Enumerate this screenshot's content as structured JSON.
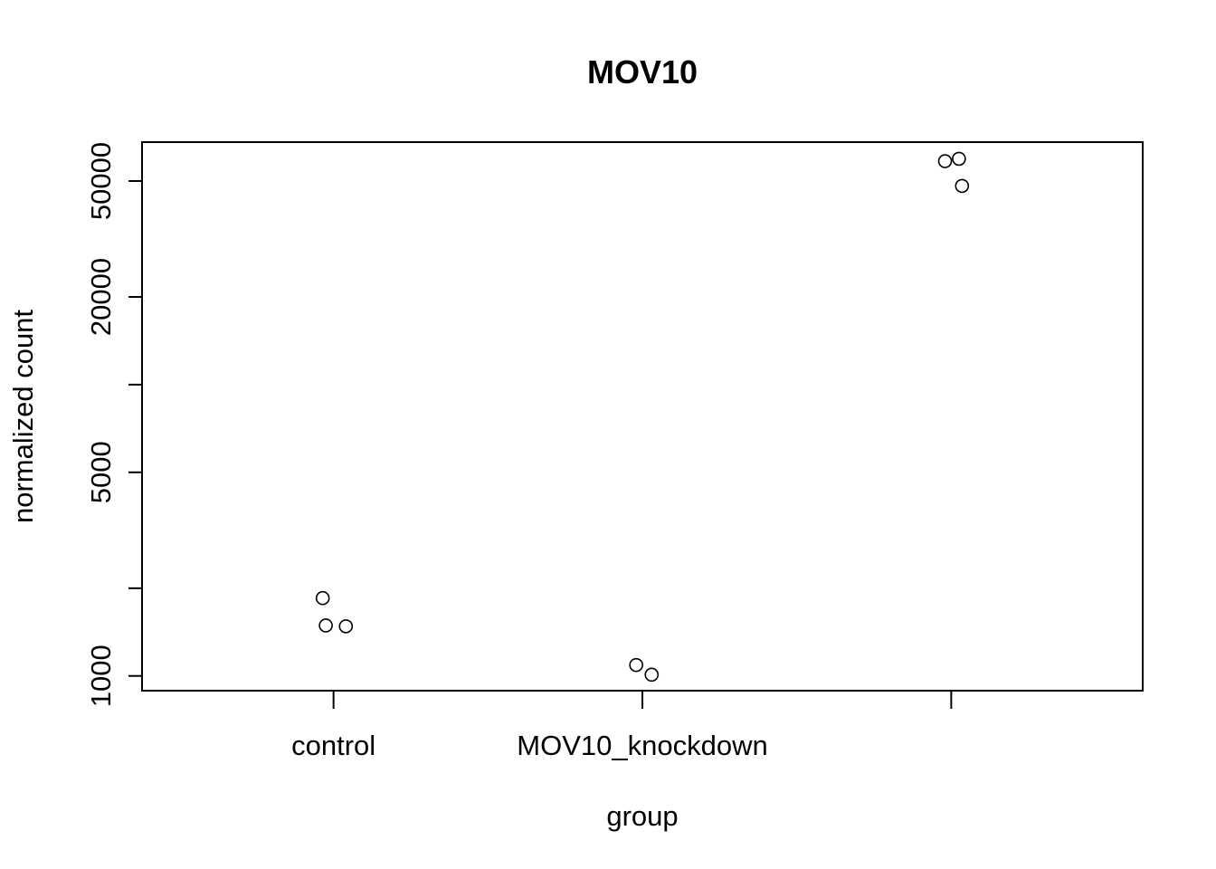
{
  "chart_data": {
    "type": "scatter",
    "title": "MOV10",
    "xlabel": "group",
    "ylabel": "normalized count",
    "y_scale": "log",
    "ylim": [
      890,
      68000
    ],
    "y_ticks": [
      {
        "value": 1000,
        "label": "1000"
      },
      {
        "value": 2000,
        "label": ""
      },
      {
        "value": 5000,
        "label": "5000"
      },
      {
        "value": 10000,
        "label": ""
      },
      {
        "value": 20000,
        "label": "20000"
      },
      {
        "value": 50000,
        "label": "50000"
      }
    ],
    "categories": [
      "control",
      "MOV10_knockdown",
      ""
    ],
    "x_ticks": [
      1,
      2,
      3
    ],
    "xlim": [
      0.38,
      3.62
    ],
    "grid": false,
    "legend": "none",
    "marker": "open-circle",
    "points": [
      {
        "x": 0.965,
        "y": 1850
      },
      {
        "x": 0.975,
        "y": 1490
      },
      {
        "x": 1.04,
        "y": 1480
      },
      {
        "x": 1.98,
        "y": 1090
      },
      {
        "x": 2.03,
        "y": 1010
      },
      {
        "x": 2.98,
        "y": 58500
      },
      {
        "x": 3.025,
        "y": 59600
      },
      {
        "x": 3.035,
        "y": 48100
      }
    ]
  }
}
